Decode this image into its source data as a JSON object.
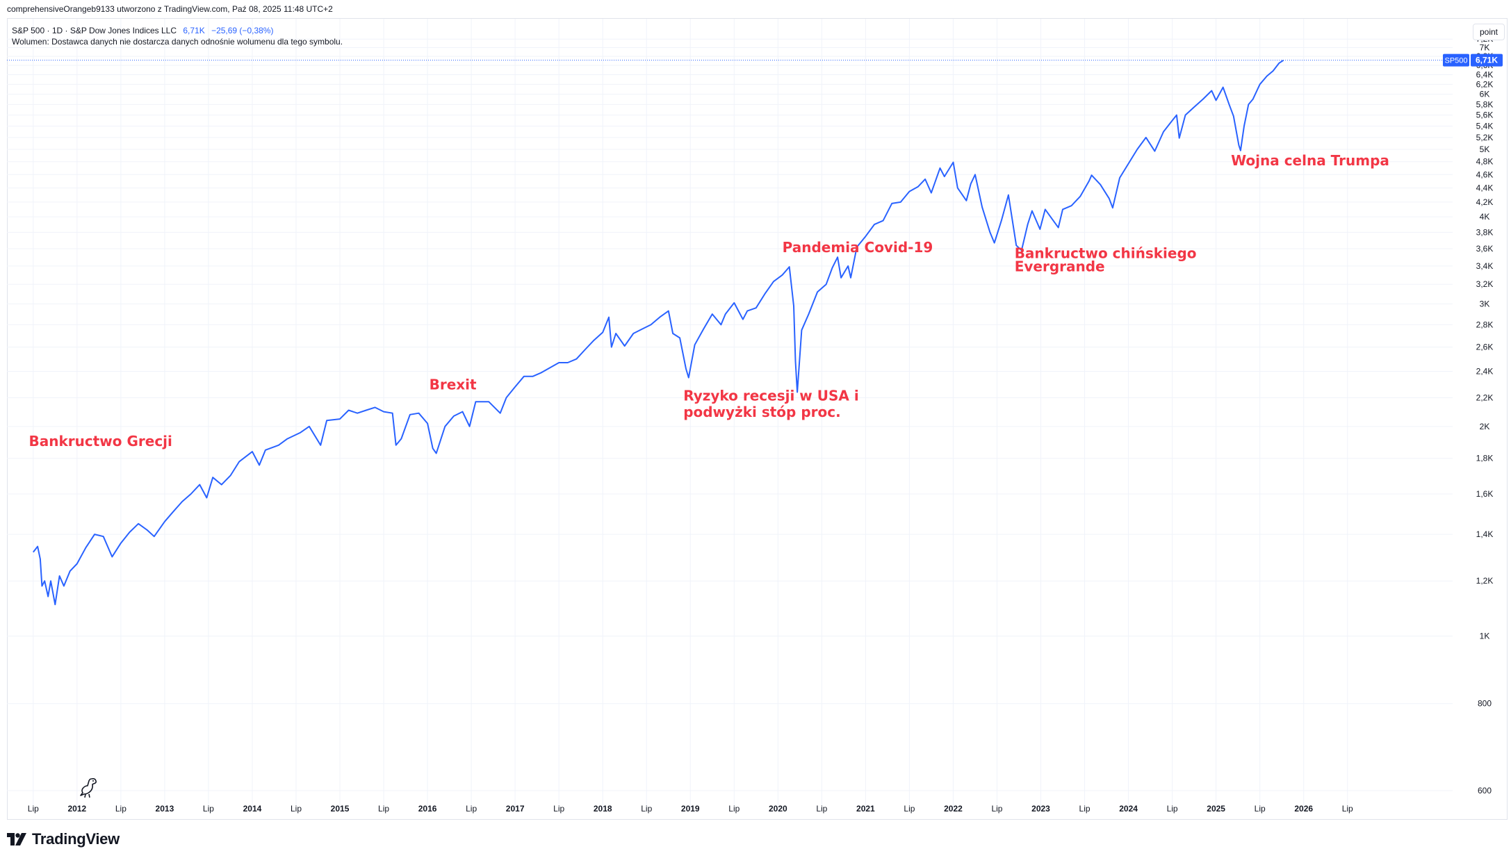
{
  "header": {
    "attribution": "comprehensiveOrangeb9133 utworzono z TradingView.com, Paź 08, 2025 11:48 UTC+2"
  },
  "legend": {
    "symbol": "S&P 500 · 1D · S&P Dow Jones Indices LLC",
    "last_value": "6,71K",
    "change": "−25,69 (−0,38%)",
    "volume_note": "Wolumen: Dostawca danych nie dostarcza danych odnośnie wolumenu dla tego symbolu."
  },
  "scale_button": "point",
  "price_tag": {
    "symbol": "SP500",
    "value": "6,71K",
    "price": 6714
  },
  "brand": {
    "name": "TradingView"
  },
  "colors": {
    "line": "#2962ff",
    "annotation": "#f23645",
    "grid": "#f0f3fa",
    "text": "#131722"
  },
  "chart_data": {
    "type": "line",
    "title": "S&P 500",
    "y_scale": "log",
    "ylim": [
      560,
      7700
    ],
    "y_ticks": [
      {
        "value": 600,
        "label": "600"
      },
      {
        "value": 800,
        "label": "800"
      },
      {
        "value": 1000,
        "label": "1K"
      },
      {
        "value": 1200,
        "label": "1,2K"
      },
      {
        "value": 1400,
        "label": "1,4K"
      },
      {
        "value": 1600,
        "label": "1,6K"
      },
      {
        "value": 1800,
        "label": "1,8K"
      },
      {
        "value": 2000,
        "label": "2K"
      },
      {
        "value": 2200,
        "label": "2,2K"
      },
      {
        "value": 2400,
        "label": "2,4K"
      },
      {
        "value": 2600,
        "label": "2,6K"
      },
      {
        "value": 2800,
        "label": "2,8K"
      },
      {
        "value": 3000,
        "label": "3K"
      },
      {
        "value": 3200,
        "label": "3,2K"
      },
      {
        "value": 3400,
        "label": "3,4K"
      },
      {
        "value": 3600,
        "label": "3,6K"
      },
      {
        "value": 3800,
        "label": "3,8K"
      },
      {
        "value": 4000,
        "label": "4K"
      },
      {
        "value": 4200,
        "label": "4,2K"
      },
      {
        "value": 4400,
        "label": "4,4K"
      },
      {
        "value": 4600,
        "label": "4,6K"
      },
      {
        "value": 4800,
        "label": "4,8K"
      },
      {
        "value": 5000,
        "label": "5K"
      },
      {
        "value": 5200,
        "label": "5,2K"
      },
      {
        "value": 5400,
        "label": "5,4K"
      },
      {
        "value": 5600,
        "label": "5,6K"
      },
      {
        "value": 5800,
        "label": "5,8K"
      },
      {
        "value": 6000,
        "label": "6K"
      },
      {
        "value": 6200,
        "label": "6,2K"
      },
      {
        "value": 6400,
        "label": "6,4K"
      },
      {
        "value": 6600,
        "label": "6,6K"
      },
      {
        "value": 6800,
        "label": "6,8K"
      },
      {
        "value": 7000,
        "label": "7K"
      },
      {
        "value": 7200,
        "label": "7,2K"
      }
    ],
    "xlim": [
      2011.2,
      2027.7
    ],
    "x_ticks": [
      {
        "value": 2011.5,
        "label": "Lip",
        "bold": false
      },
      {
        "value": 2012.0,
        "label": "2012",
        "bold": true
      },
      {
        "value": 2012.5,
        "label": "Lip",
        "bold": false
      },
      {
        "value": 2013.0,
        "label": "2013",
        "bold": true
      },
      {
        "value": 2013.5,
        "label": "Lip",
        "bold": false
      },
      {
        "value": 2014.0,
        "label": "2014",
        "bold": true
      },
      {
        "value": 2014.5,
        "label": "Lip",
        "bold": false
      },
      {
        "value": 2015.0,
        "label": "2015",
        "bold": true
      },
      {
        "value": 2015.5,
        "label": "Lip",
        "bold": false
      },
      {
        "value": 2016.0,
        "label": "2016",
        "bold": true
      },
      {
        "value": 2016.5,
        "label": "Lip",
        "bold": false
      },
      {
        "value": 2017.0,
        "label": "2017",
        "bold": true
      },
      {
        "value": 2017.5,
        "label": "Lip",
        "bold": false
      },
      {
        "value": 2018.0,
        "label": "2018",
        "bold": true
      },
      {
        "value": 2018.5,
        "label": "Lip",
        "bold": false
      },
      {
        "value": 2019.0,
        "label": "2019",
        "bold": true
      },
      {
        "value": 2019.5,
        "label": "Lip",
        "bold": false
      },
      {
        "value": 2020.0,
        "label": "2020",
        "bold": true
      },
      {
        "value": 2020.5,
        "label": "Lip",
        "bold": false
      },
      {
        "value": 2021.0,
        "label": "2021",
        "bold": true
      },
      {
        "value": 2021.5,
        "label": "Lip",
        "bold": false
      },
      {
        "value": 2022.0,
        "label": "2022",
        "bold": true
      },
      {
        "value": 2022.5,
        "label": "Lip",
        "bold": false
      },
      {
        "value": 2023.0,
        "label": "2023",
        "bold": true
      },
      {
        "value": 2023.5,
        "label": "Lip",
        "bold": false
      },
      {
        "value": 2024.0,
        "label": "2024",
        "bold": true
      },
      {
        "value": 2024.5,
        "label": "Lip",
        "bold": false
      },
      {
        "value": 2025.0,
        "label": "2025",
        "bold": true
      },
      {
        "value": 2025.5,
        "label": "Lip",
        "bold": false
      },
      {
        "value": 2026.0,
        "label": "2026",
        "bold": true
      },
      {
        "value": 2026.5,
        "label": "Lip",
        "bold": false
      }
    ],
    "series": [
      {
        "values": [
          [
            2011.5,
            1320
          ],
          [
            2011.55,
            1345
          ],
          [
            2011.58,
            1290
          ],
          [
            2011.6,
            1180
          ],
          [
            2011.63,
            1200
          ],
          [
            2011.67,
            1140
          ],
          [
            2011.7,
            1200
          ],
          [
            2011.75,
            1110
          ],
          [
            2011.8,
            1220
          ],
          [
            2011.85,
            1180
          ],
          [
            2011.92,
            1240
          ],
          [
            2012.0,
            1270
          ],
          [
            2012.1,
            1340
          ],
          [
            2012.2,
            1400
          ],
          [
            2012.3,
            1390
          ],
          [
            2012.4,
            1300
          ],
          [
            2012.5,
            1360
          ],
          [
            2012.6,
            1410
          ],
          [
            2012.7,
            1450
          ],
          [
            2012.8,
            1420
          ],
          [
            2012.88,
            1390
          ],
          [
            2013.0,
            1460
          ],
          [
            2013.1,
            1510
          ],
          [
            2013.2,
            1560
          ],
          [
            2013.3,
            1600
          ],
          [
            2013.4,
            1650
          ],
          [
            2013.48,
            1580
          ],
          [
            2013.55,
            1690
          ],
          [
            2013.65,
            1650
          ],
          [
            2013.75,
            1700
          ],
          [
            2013.85,
            1780
          ],
          [
            2014.0,
            1840
          ],
          [
            2014.08,
            1760
          ],
          [
            2014.15,
            1850
          ],
          [
            2014.3,
            1880
          ],
          [
            2014.4,
            1920
          ],
          [
            2014.55,
            1960
          ],
          [
            2014.65,
            2000
          ],
          [
            2014.78,
            1880
          ],
          [
            2014.85,
            2040
          ],
          [
            2015.0,
            2050
          ],
          [
            2015.1,
            2110
          ],
          [
            2015.2,
            2090
          ],
          [
            2015.3,
            2110
          ],
          [
            2015.4,
            2130
          ],
          [
            2015.5,
            2100
          ],
          [
            2015.6,
            2090
          ],
          [
            2015.64,
            1880
          ],
          [
            2015.7,
            1920
          ],
          [
            2015.8,
            2080
          ],
          [
            2015.9,
            2090
          ],
          [
            2016.0,
            2020
          ],
          [
            2016.06,
            1860
          ],
          [
            2016.1,
            1830
          ],
          [
            2016.2,
            2000
          ],
          [
            2016.3,
            2070
          ],
          [
            2016.4,
            2100
          ],
          [
            2016.48,
            2000
          ],
          [
            2016.55,
            2170
          ],
          [
            2016.7,
            2170
          ],
          [
            2016.83,
            2090
          ],
          [
            2016.9,
            2200
          ],
          [
            2017.0,
            2280
          ],
          [
            2017.1,
            2360
          ],
          [
            2017.2,
            2360
          ],
          [
            2017.3,
            2390
          ],
          [
            2017.4,
            2430
          ],
          [
            2017.5,
            2470
          ],
          [
            2017.6,
            2470
          ],
          [
            2017.7,
            2500
          ],
          [
            2017.8,
            2580
          ],
          [
            2017.9,
            2660
          ],
          [
            2018.0,
            2730
          ],
          [
            2018.07,
            2870
          ],
          [
            2018.1,
            2600
          ],
          [
            2018.15,
            2720
          ],
          [
            2018.25,
            2610
          ],
          [
            2018.35,
            2720
          ],
          [
            2018.45,
            2760
          ],
          [
            2018.55,
            2800
          ],
          [
            2018.65,
            2870
          ],
          [
            2018.75,
            2930
          ],
          [
            2018.8,
            2720
          ],
          [
            2018.88,
            2680
          ],
          [
            2018.95,
            2420
          ],
          [
            2018.98,
            2350
          ],
          [
            2019.05,
            2620
          ],
          [
            2019.15,
            2760
          ],
          [
            2019.25,
            2900
          ],
          [
            2019.35,
            2800
          ],
          [
            2019.4,
            2900
          ],
          [
            2019.5,
            3010
          ],
          [
            2019.6,
            2850
          ],
          [
            2019.65,
            2930
          ],
          [
            2019.75,
            2960
          ],
          [
            2019.85,
            3100
          ],
          [
            2019.95,
            3230
          ],
          [
            2020.05,
            3300
          ],
          [
            2020.13,
            3390
          ],
          [
            2020.18,
            2980
          ],
          [
            2020.2,
            2480
          ],
          [
            2020.22,
            2240
          ],
          [
            2020.27,
            2750
          ],
          [
            2020.35,
            2900
          ],
          [
            2020.45,
            3120
          ],
          [
            2020.55,
            3200
          ],
          [
            2020.62,
            3380
          ],
          [
            2020.68,
            3500
          ],
          [
            2020.72,
            3270
          ],
          [
            2020.8,
            3400
          ],
          [
            2020.83,
            3270
          ],
          [
            2020.9,
            3620
          ],
          [
            2021.0,
            3750
          ],
          [
            2021.1,
            3900
          ],
          [
            2021.2,
            3950
          ],
          [
            2021.3,
            4180
          ],
          [
            2021.4,
            4200
          ],
          [
            2021.5,
            4350
          ],
          [
            2021.6,
            4420
          ],
          [
            2021.68,
            4530
          ],
          [
            2021.75,
            4330
          ],
          [
            2021.85,
            4700
          ],
          [
            2021.9,
            4570
          ],
          [
            2022.0,
            4790
          ],
          [
            2022.05,
            4400
          ],
          [
            2022.15,
            4220
          ],
          [
            2022.2,
            4460
          ],
          [
            2022.25,
            4600
          ],
          [
            2022.33,
            4130
          ],
          [
            2022.42,
            3800
          ],
          [
            2022.47,
            3670
          ],
          [
            2022.55,
            3950
          ],
          [
            2022.63,
            4300
          ],
          [
            2022.72,
            3640
          ],
          [
            2022.78,
            3580
          ],
          [
            2022.85,
            3900
          ],
          [
            2022.9,
            4080
          ],
          [
            2022.99,
            3840
          ],
          [
            2023.05,
            4100
          ],
          [
            2023.2,
            3860
          ],
          [
            2023.25,
            4100
          ],
          [
            2023.35,
            4150
          ],
          [
            2023.45,
            4280
          ],
          [
            2023.55,
            4500
          ],
          [
            2023.58,
            4590
          ],
          [
            2023.68,
            4450
          ],
          [
            2023.78,
            4250
          ],
          [
            2023.82,
            4120
          ],
          [
            2023.9,
            4550
          ],
          [
            2024.0,
            4770
          ],
          [
            2024.1,
            5000
          ],
          [
            2024.2,
            5200
          ],
          [
            2024.3,
            4970
          ],
          [
            2024.4,
            5300
          ],
          [
            2024.5,
            5500
          ],
          [
            2024.55,
            5600
          ],
          [
            2024.58,
            5190
          ],
          [
            2024.65,
            5600
          ],
          [
            2024.75,
            5750
          ],
          [
            2024.85,
            5900
          ],
          [
            2024.95,
            6070
          ],
          [
            2025.0,
            5880
          ],
          [
            2025.08,
            6140
          ],
          [
            2025.15,
            5800
          ],
          [
            2025.2,
            5580
          ],
          [
            2025.26,
            5070
          ],
          [
            2025.28,
            4980
          ],
          [
            2025.32,
            5400
          ],
          [
            2025.37,
            5800
          ],
          [
            2025.42,
            5900
          ],
          [
            2025.5,
            6200
          ],
          [
            2025.58,
            6370
          ],
          [
            2025.65,
            6480
          ],
          [
            2025.72,
            6650
          ],
          [
            2025.77,
            6714
          ]
        ]
      }
    ],
    "annotations": [
      {
        "text": "Bankructwo Grecji",
        "x": 2011.45,
        "y": 1875
      },
      {
        "text": "Brexit",
        "x": 2016.02,
        "y": 2260
      },
      {
        "text": "Ryzyko recesji w USA i",
        "x": 2018.92,
        "y": 2180
      },
      {
        "text": "podwyżki stóp proc.",
        "x": 2018.92,
        "y": 2065
      },
      {
        "text": "Pandemia Covid-19",
        "x": 2020.05,
        "y": 3560
      },
      {
        "text": "Bankructwo chińskiego",
        "x": 2022.7,
        "y": 3490
      },
      {
        "text": "Evergrande",
        "x": 2022.7,
        "y": 3340
      },
      {
        "text": "Wojna celna Trumpa",
        "x": 2025.17,
        "y": 4740
      }
    ]
  }
}
